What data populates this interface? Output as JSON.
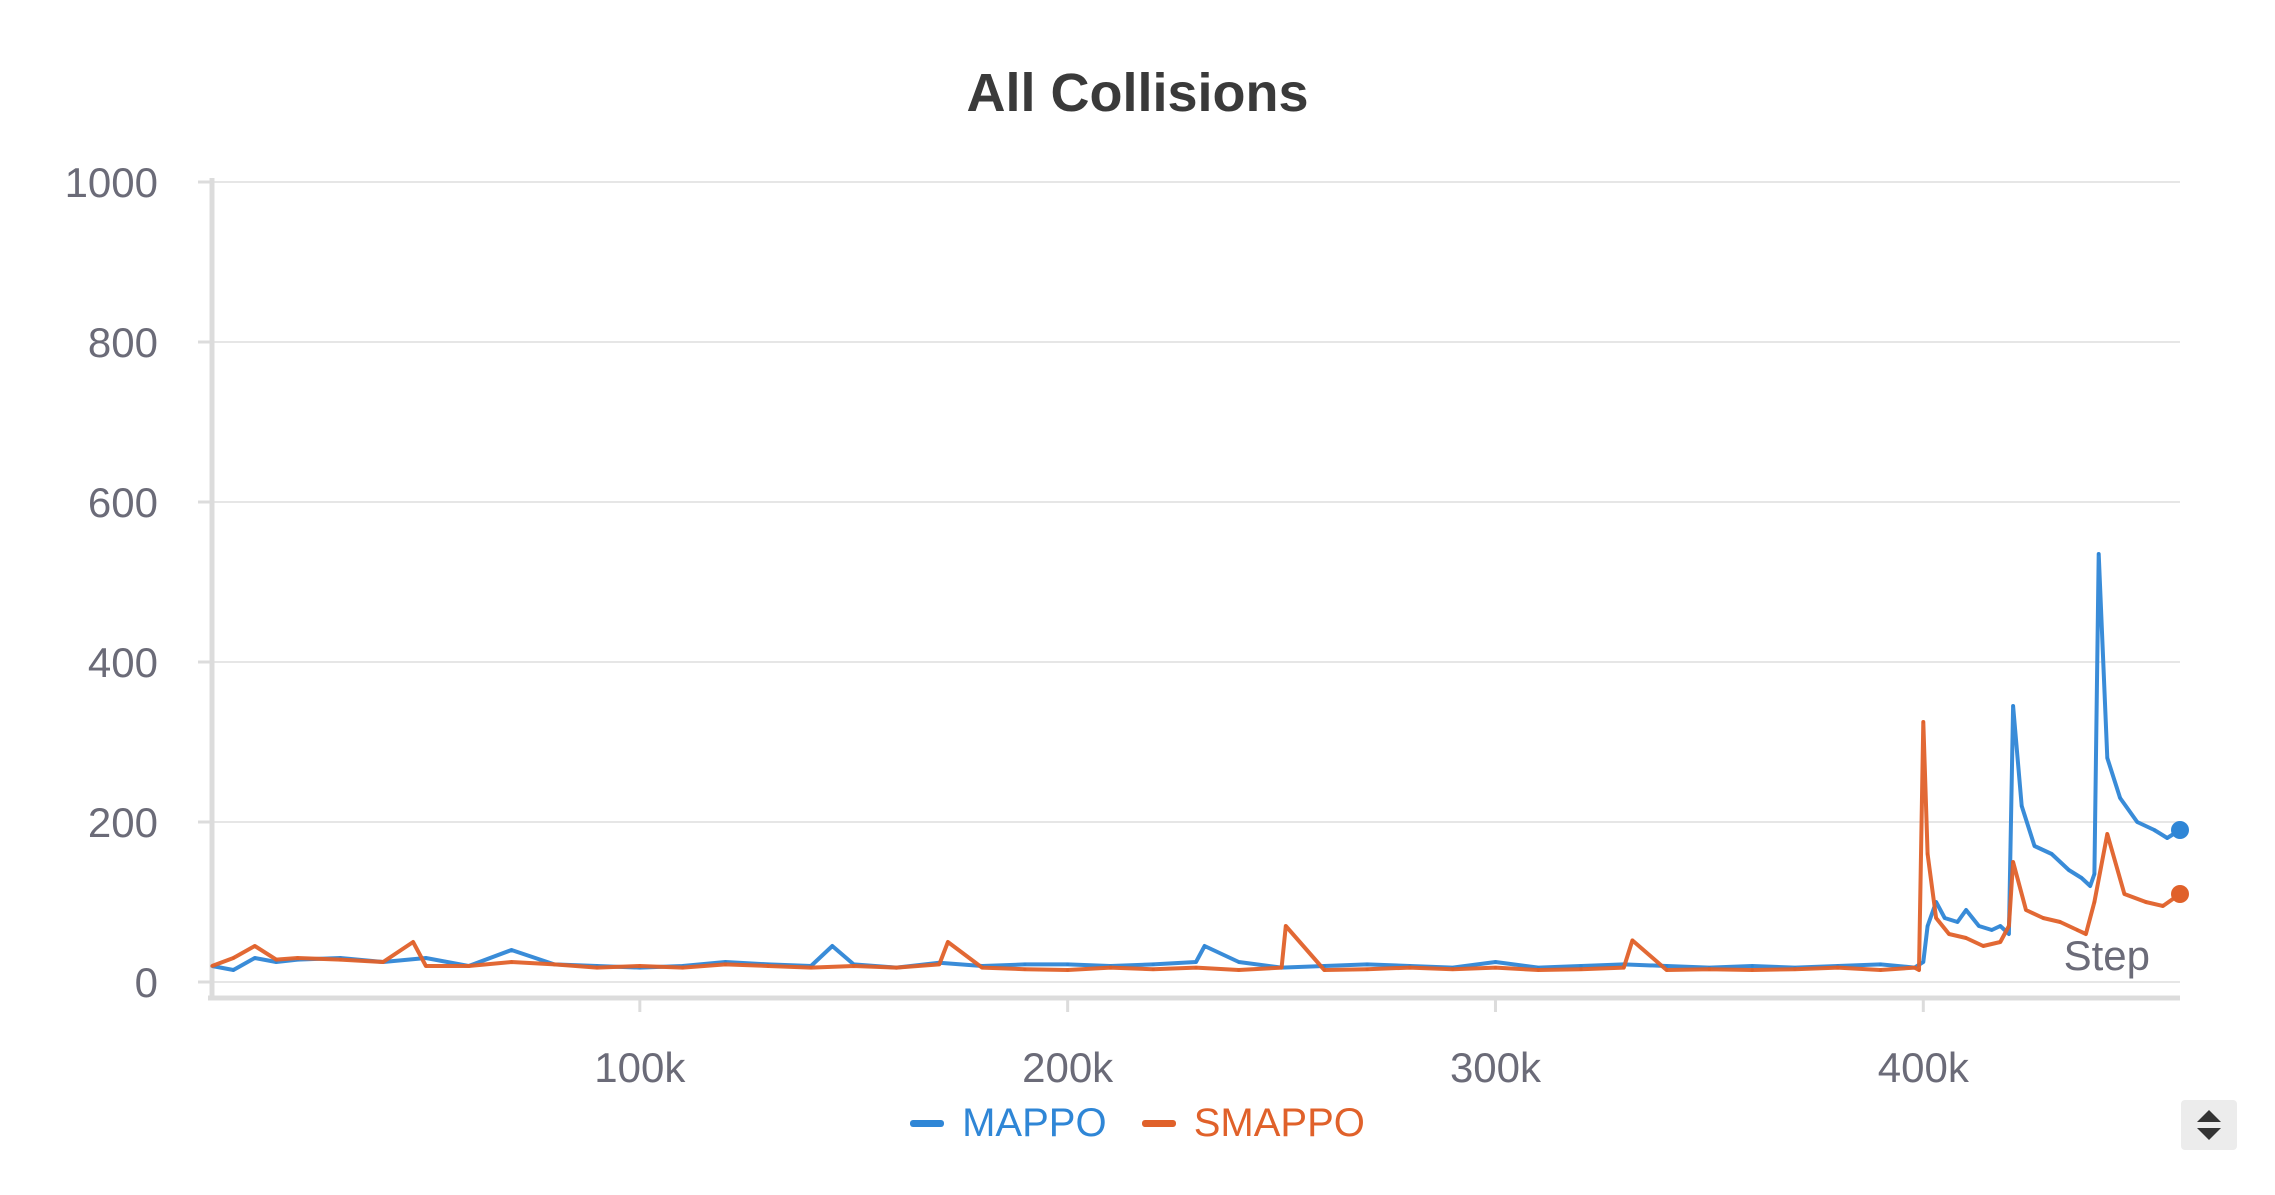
{
  "chart_data": {
    "type": "line",
    "title": "All Collisions",
    "xlabel": "Step",
    "ylabel": "",
    "xlim": [
      0,
      460000
    ],
    "ylim": [
      0,
      1000
    ],
    "x_ticks": [
      100000,
      200000,
      300000,
      400000
    ],
    "x_tick_labels": [
      "100k",
      "200k",
      "300k",
      "400k"
    ],
    "y_ticks": [
      0,
      200,
      400,
      600,
      800,
      1000
    ],
    "y_tick_labels": [
      "0",
      "200",
      "400",
      "600",
      "800",
      "1000"
    ],
    "grid": true,
    "legend_position": "bottom-center",
    "series": [
      {
        "name": "MAPPO",
        "color": "#2f86d6",
        "x": [
          0,
          5000,
          10000,
          15000,
          20000,
          30000,
          40000,
          50000,
          60000,
          70000,
          80000,
          90000,
          100000,
          110000,
          120000,
          130000,
          140000,
          145000,
          150000,
          160000,
          170000,
          180000,
          190000,
          200000,
          210000,
          220000,
          230000,
          232000,
          240000,
          250000,
          260000,
          270000,
          280000,
          290000,
          300000,
          310000,
          320000,
          330000,
          340000,
          350000,
          360000,
          370000,
          380000,
          390000,
          398000,
          400000,
          401000,
          403000,
          405000,
          408000,
          410000,
          413000,
          416000,
          418000,
          420000,
          421000,
          423000,
          426000,
          430000,
          434000,
          437000,
          439000,
          440000,
          441000,
          443000,
          446000,
          450000,
          454000,
          457000,
          460000
        ],
        "y": [
          20,
          15,
          30,
          25,
          28,
          30,
          25,
          30,
          20,
          40,
          22,
          20,
          18,
          20,
          25,
          22,
          20,
          45,
          22,
          18,
          24,
          20,
          22,
          22,
          20,
          22,
          25,
          45,
          25,
          18,
          20,
          22,
          20,
          18,
          25,
          18,
          20,
          22,
          20,
          18,
          20,
          18,
          20,
          22,
          18,
          25,
          70,
          100,
          80,
          75,
          90,
          70,
          65,
          70,
          60,
          345,
          220,
          170,
          160,
          140,
          130,
          120,
          135,
          535,
          280,
          230,
          200,
          190,
          180,
          190
        ]
      },
      {
        "name": "SMAPPO",
        "color": "#e0612a",
        "x": [
          0,
          5000,
          10000,
          15000,
          20000,
          30000,
          40000,
          47000,
          50000,
          60000,
          70000,
          80000,
          90000,
          100000,
          110000,
          120000,
          130000,
          140000,
          150000,
          160000,
          170000,
          172000,
          180000,
          190000,
          200000,
          210000,
          220000,
          230000,
          240000,
          250000,
          251000,
          260000,
          270000,
          280000,
          290000,
          300000,
          310000,
          320000,
          330000,
          332000,
          340000,
          350000,
          360000,
          370000,
          380000,
          390000,
          398000,
          399000,
          400000,
          401000,
          403000,
          406000,
          410000,
          414000,
          418000,
          420000,
          421000,
          424000,
          428000,
          432000,
          436000,
          438000,
          440000,
          443000,
          447000,
          452000,
          456000,
          460000
        ],
        "y": [
          20,
          30,
          45,
          28,
          30,
          28,
          25,
          50,
          20,
          20,
          25,
          22,
          18,
          20,
          18,
          22,
          20,
          18,
          20,
          18,
          22,
          50,
          18,
          16,
          15,
          18,
          16,
          18,
          15,
          18,
          70,
          15,
          16,
          18,
          16,
          18,
          15,
          16,
          18,
          52,
          15,
          16,
          15,
          16,
          18,
          15,
          18,
          15,
          325,
          160,
          80,
          60,
          55,
          45,
          50,
          70,
          150,
          90,
          80,
          75,
          65,
          60,
          100,
          185,
          110,
          100,
          95,
          110
        ]
      }
    ]
  }
}
